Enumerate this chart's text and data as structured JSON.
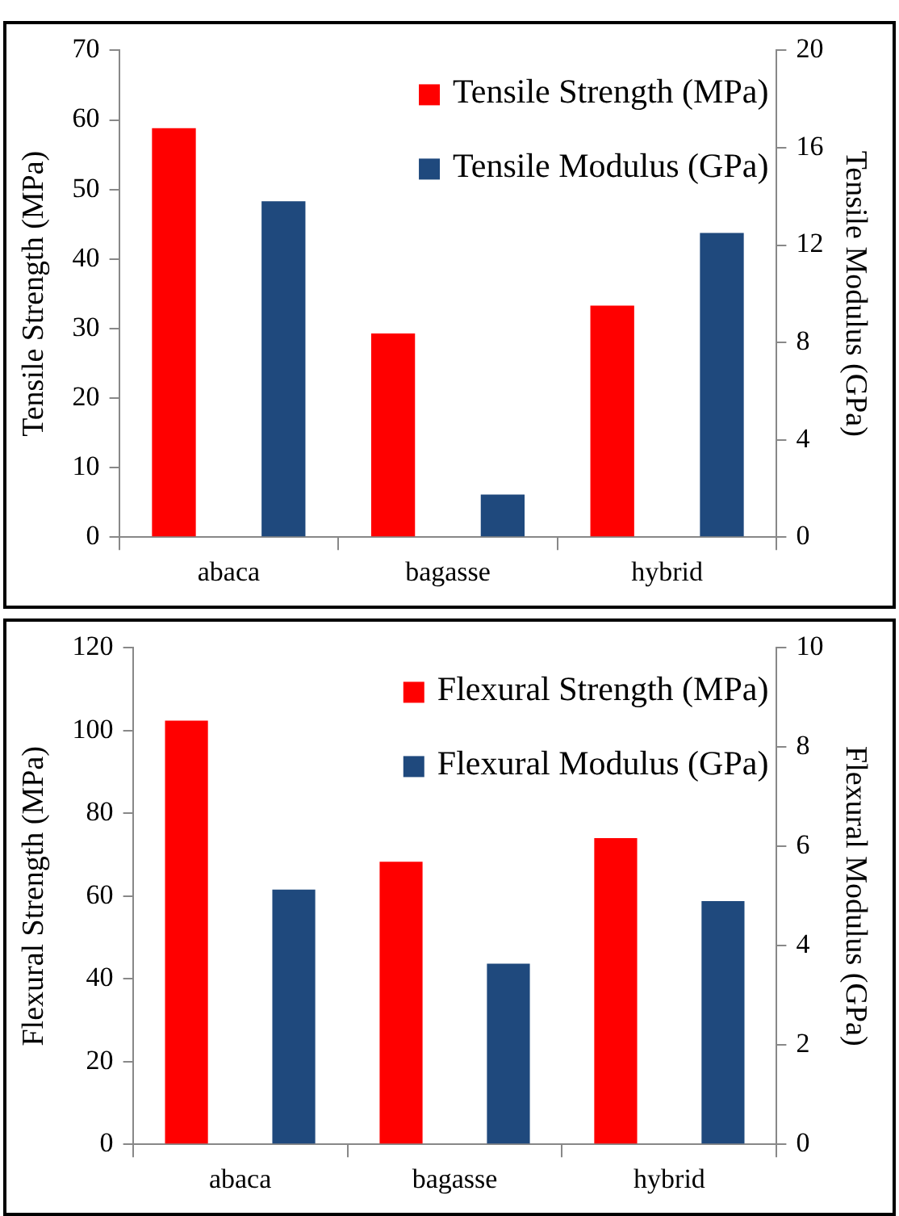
{
  "chart_data": [
    {
      "type": "bar",
      "categories": [
        "abaca",
        "bagasse",
        "hybrid"
      ],
      "ylabel": "Tensile Strength (MPa)",
      "y2label": "Tensile Modulus (GPa)",
      "series": [
        {
          "name": "Tensile Strength (MPa)",
          "color": "#ff0000",
          "values": [
            58.8,
            29.3,
            33.3
          ]
        },
        {
          "name": "Tensile Modulus (GPa)",
          "color": "#1f497d",
          "values": [
            13.8,
            1.75,
            12.5
          ],
          "axis": "y2"
        }
      ],
      "ylim": [
        0,
        70
      ],
      "yticks": [
        0,
        10,
        20,
        30,
        40,
        50,
        60,
        70
      ],
      "y2lim": [
        0,
        20
      ],
      "y2ticks": [
        0,
        4,
        8,
        12,
        16,
        20
      ],
      "grid": false,
      "legend": "top right"
    },
    {
      "type": "bar",
      "categories": [
        "abaca",
        "bagasse",
        "hybrid"
      ],
      "ylabel": "Flexural Strength (MPa)",
      "y2label": "Flexural Modulus (GPa)",
      "series": [
        {
          "name": "Flexural Strength (MPa)",
          "color": "#ff0000",
          "values": [
            102.4,
            68.3,
            74
          ]
        },
        {
          "name": "Flexural Modulus (GPa)",
          "color": "#1f497d",
          "values": [
            5.13,
            3.64,
            4.9
          ],
          "axis": "y2"
        }
      ],
      "ylim": [
        0,
        120
      ],
      "yticks": [
        0,
        20,
        40,
        60,
        80,
        100,
        120
      ],
      "y2lim": [
        0,
        10
      ],
      "y2ticks": [
        0,
        2,
        4,
        6,
        8,
        10
      ],
      "grid": false,
      "legend": "top right"
    }
  ]
}
